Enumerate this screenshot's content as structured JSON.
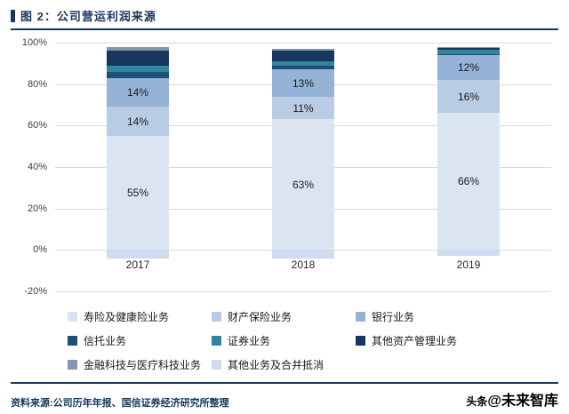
{
  "header": {
    "title": "图 2：公司营运利润来源"
  },
  "chart_data": {
    "type": "bar",
    "subtype": "stacked-column",
    "title": "图 2：公司营运利润来源",
    "categories": [
      "2017",
      "2018",
      "2019"
    ],
    "series": [
      {
        "name": "寿险及健康险业务",
        "color": "#dbe5f1",
        "values": [
          55,
          63,
          66
        ],
        "labels": [
          "55%",
          "63%",
          "66%"
        ]
      },
      {
        "name": "财产保险业务",
        "color": "#b8cce4",
        "values": [
          14,
          11,
          16
        ],
        "labels": [
          "14%",
          "11%",
          "16%"
        ]
      },
      {
        "name": "银行业务",
        "color": "#95b3d7",
        "values": [
          14,
          13,
          12
        ],
        "labels": [
          "14%",
          "13%",
          "12%"
        ]
      },
      {
        "name": "信托业务",
        "color": "#1f4e79",
        "values": [
          3,
          2,
          0.5
        ],
        "labels": null
      },
      {
        "name": "证券业务",
        "color": "#31859c",
        "values": [
          3,
          2,
          2
        ],
        "labels": null
      },
      {
        "name": "其他资产管理业务",
        "color": "#17375e",
        "values": [
          7,
          5,
          1
        ],
        "labels": null
      },
      {
        "name": "金融科技与医疗科技业务",
        "color": "#8496b0",
        "values": [
          2,
          1,
          0.5
        ],
        "labels": null
      },
      {
        "name": "其他业务及合并抵消",
        "color": "#cfdcee",
        "values": [
          -4,
          -4,
          -3
        ],
        "labels": null
      }
    ],
    "ylim": [
      -20,
      100
    ],
    "yticks": [
      100,
      80,
      60,
      40,
      20,
      0,
      -20
    ],
    "ytick_suffix": "%",
    "grid": true,
    "legend_position": "bottom"
  },
  "footer": {
    "source": "资料来源:公司历年年报、国信证券经济研究所整理"
  },
  "watermark": {
    "prefix": "头条",
    "handle": "@未来智库"
  }
}
